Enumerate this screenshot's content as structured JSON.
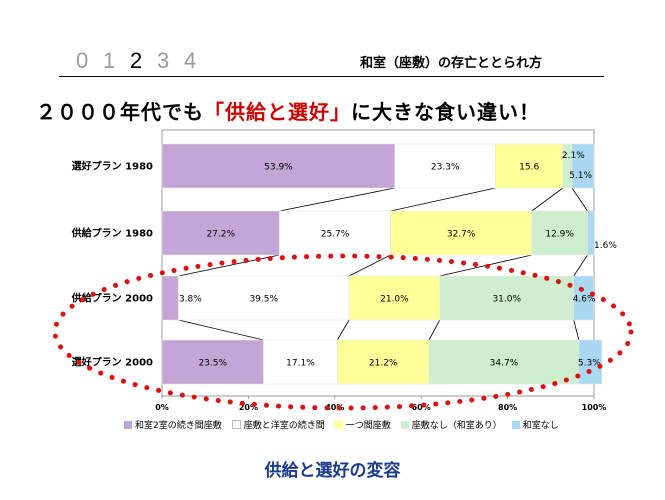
{
  "header": {
    "page_numbers": [
      "0",
      "1",
      "2",
      "3",
      "4"
    ],
    "active_page": 2,
    "section_title": "和室（座敷）の存亡ととられ方",
    "headline_pre": "２０００年代でも",
    "headline_red": "「供給と選好」",
    "headline_post": "に大きな食い違い！"
  },
  "caption": "供給と選好の変容",
  "colors": {
    "s1": "#c3a6d6",
    "s2": "#ffffff",
    "s3": "#ffff99",
    "s4": "#cfeecf",
    "s5": "#a9d8f2",
    "ellipse": "#dd1111"
  },
  "chart_data": {
    "type": "bar",
    "orientation": "horizontal",
    "stacked": "percent",
    "categories": [
      "選好プラン 1980",
      "供給プラン 1980",
      "供給プラン 2000",
      "選好プラン 2000"
    ],
    "series": [
      {
        "name": "和室2室の続き間座敷",
        "values": [
          53.9,
          27.2,
          3.8,
          23.5
        ],
        "labels": [
          "53.9%",
          "27.2%",
          "3.8%",
          "23.5%"
        ]
      },
      {
        "name": "座敷と洋室の続き間",
        "values": [
          23.3,
          25.7,
          39.5,
          17.1
        ],
        "labels": [
          "23.3%",
          "25.7%",
          "39.5%",
          "17.1%"
        ]
      },
      {
        "name": "一つ間座敷",
        "values": [
          15.6,
          32.7,
          21.0,
          21.2
        ],
        "labels": [
          "15.6",
          "32.7%",
          "21.0%",
          "21.2%"
        ]
      },
      {
        "name": "座敷なし（和室あり）",
        "values": [
          2.1,
          12.9,
          31.0,
          34.7
        ],
        "labels": [
          "2.1%",
          "12.9%",
          "31.0%",
          "34.7%"
        ]
      },
      {
        "name": "和室なし",
        "values": [
          5.1,
          1.6,
          4.6,
          5.3
        ],
        "labels": [
          "5.1%",
          "1.6%",
          "4.6%",
          "5.3%"
        ]
      }
    ],
    "x_ticks": [
      "0%",
      "20%",
      "40%",
      "60%",
      "80%",
      "100%"
    ],
    "xlim": [
      0,
      100
    ],
    "legend_position": "bottom",
    "grid": false,
    "annotation": "dotted red ellipse highlights 供給プラン 2000 and 選好プラン 2000"
  }
}
